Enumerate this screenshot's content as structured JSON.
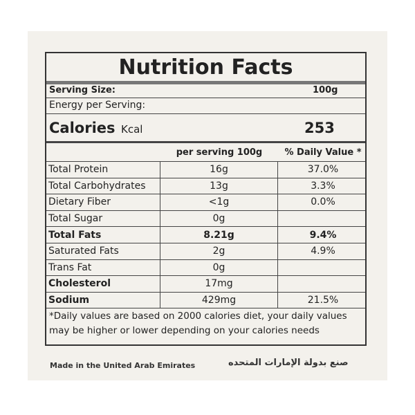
{
  "title": "Nutrition Facts",
  "serving": {
    "label": "Serving Size:",
    "value": "100g"
  },
  "energy": "Energy per Serving:",
  "calories": {
    "label": "Calories",
    "unit": "Kcal",
    "value": "253"
  },
  "table": {
    "header": [
      "per serving 100g",
      "% Daily Value *"
    ],
    "rows": [
      [
        "Total Protein",
        "16g",
        "37.0%"
      ],
      [
        "Total Carbohydrates",
        "13g",
        "3.3%"
      ],
      [
        "Dietary Fiber",
        "<1g",
        "0.0%"
      ],
      [
        "Total Sugar",
        "0g"
      ],
      [
        "Total Fats",
        "8.21g",
        "9.4%"
      ],
      [
        "Saturated Fats",
        "2g",
        "4.9%"
      ],
      [
        "Trans Fat",
        "0g"
      ],
      [
        "Cholesterol",
        "17mg"
      ],
      [
        "Sodium",
        "429mg",
        "21.5%"
      ]
    ]
  },
  "footnote": "*Daily values are based on 2000 calories diet, your daily values may be higher or lower depending on your calories needs",
  "made_in": "Made in the United Arab Emirates",
  "made_in_arabic": "صنع بدولة الإمارات المتحده"
}
